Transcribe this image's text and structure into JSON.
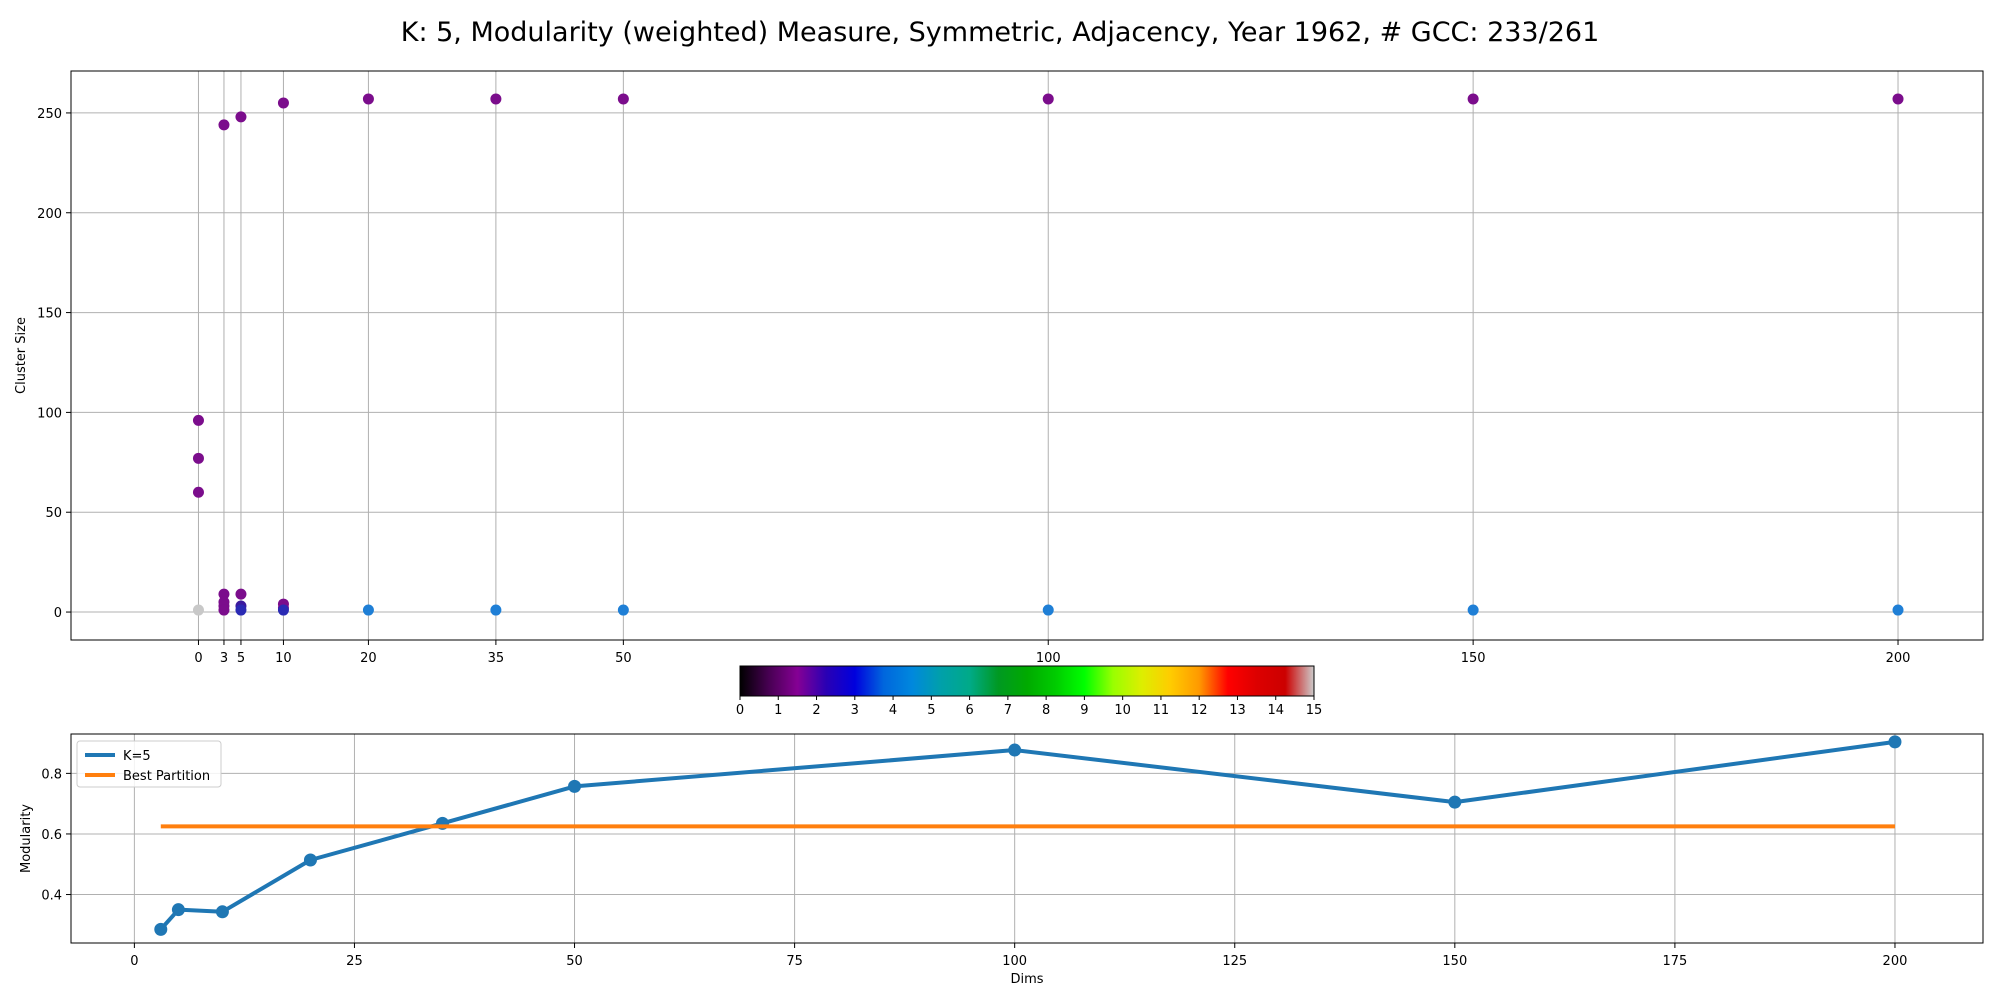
{
  "figure": {
    "title": "K: 5, Modularity (weighted) Measure, Symmetric, Adjacency, Year 1962, # GCC: 233/261"
  },
  "chart_data": [
    {
      "type": "scatter",
      "xlabel": "",
      "ylabel": "Cluster Size",
      "xticks": [
        0,
        3,
        5,
        10,
        20,
        35,
        50,
        100,
        150,
        200
      ],
      "yticks": [
        0,
        50,
        100,
        150,
        200,
        250
      ],
      "xlim": [
        -15,
        210
      ],
      "ylim": [
        -14,
        271
      ],
      "grid": true,
      "points": [
        {
          "x": 0,
          "y": 96,
          "color": "#7b0d8c"
        },
        {
          "x": 0,
          "y": 77,
          "color": "#7b0d8c"
        },
        {
          "x": 0,
          "y": 60,
          "color": "#7b0d8c"
        },
        {
          "x": 0,
          "y": 1,
          "color": "#c8c8c8"
        },
        {
          "x": 3,
          "y": 244,
          "color": "#7b0d8c"
        },
        {
          "x": 3,
          "y": 9,
          "color": "#7b0d8c"
        },
        {
          "x": 3,
          "y": 5,
          "color": "#7b0d8c"
        },
        {
          "x": 3,
          "y": 3,
          "color": "#7b0d8c"
        },
        {
          "x": 3,
          "y": 1,
          "color": "#7b0d8c"
        },
        {
          "x": 5,
          "y": 248,
          "color": "#7b0d8c"
        },
        {
          "x": 5,
          "y": 9,
          "color": "#7b0d8c"
        },
        {
          "x": 5,
          "y": 3,
          "color": "#3b1a9e"
        },
        {
          "x": 5,
          "y": 1,
          "color": "#2a2ab4"
        },
        {
          "x": 10,
          "y": 255,
          "color": "#7b0d8c"
        },
        {
          "x": 10,
          "y": 4,
          "color": "#7b0d8c"
        },
        {
          "x": 10,
          "y": 2,
          "color": "#7b0d8c"
        },
        {
          "x": 10,
          "y": 1,
          "color": "#2a2ab4"
        },
        {
          "x": 20,
          "y": 257,
          "color": "#7b0d8c"
        },
        {
          "x": 20,
          "y": 1,
          "color": "#1f7fd6"
        },
        {
          "x": 35,
          "y": 257,
          "color": "#7b0d8c"
        },
        {
          "x": 35,
          "y": 1,
          "color": "#1f7fd6"
        },
        {
          "x": 50,
          "y": 257,
          "color": "#7b0d8c"
        },
        {
          "x": 50,
          "y": 1,
          "color": "#1f7fd6"
        },
        {
          "x": 100,
          "y": 257,
          "color": "#7b0d8c"
        },
        {
          "x": 100,
          "y": 1,
          "color": "#1f7fd6"
        },
        {
          "x": 150,
          "y": 257,
          "color": "#7b0d8c"
        },
        {
          "x": 150,
          "y": 1,
          "color": "#1f7fd6"
        },
        {
          "x": 200,
          "y": 257,
          "color": "#7b0d8c"
        },
        {
          "x": 200,
          "y": 1,
          "color": "#1f7fd6"
        }
      ]
    },
    {
      "type": "colorbar",
      "colormap": "nipy_spectral",
      "range": [
        0,
        15
      ],
      "ticks": [
        0,
        1,
        2,
        3,
        4,
        5,
        6,
        7,
        8,
        9,
        10,
        11,
        12,
        13,
        14,
        15
      ],
      "stops": [
        {
          "v": 0.0,
          "c": "#000000"
        },
        {
          "v": 0.05,
          "c": "#470052"
        },
        {
          "v": 0.1,
          "c": "#850094"
        },
        {
          "v": 0.15,
          "c": "#2a00b4"
        },
        {
          "v": 0.2,
          "c": "#0000dd"
        },
        {
          "v": 0.25,
          "c": "#0066dd"
        },
        {
          "v": 0.3,
          "c": "#0088dd"
        },
        {
          "v": 0.35,
          "c": "#00a0aa"
        },
        {
          "v": 0.4,
          "c": "#00aa88"
        },
        {
          "v": 0.45,
          "c": "#009922"
        },
        {
          "v": 0.5,
          "c": "#00aa00"
        },
        {
          "v": 0.55,
          "c": "#00cc00"
        },
        {
          "v": 0.6,
          "c": "#00ff00"
        },
        {
          "v": 0.65,
          "c": "#99ff00"
        },
        {
          "v": 0.7,
          "c": "#ddee00"
        },
        {
          "v": 0.75,
          "c": "#ffcc00"
        },
        {
          "v": 0.8,
          "c": "#ff9900"
        },
        {
          "v": 0.85,
          "c": "#ff0000"
        },
        {
          "v": 0.9,
          "c": "#dd0000"
        },
        {
          "v": 0.95,
          "c": "#cc0000"
        },
        {
          "v": 1.0,
          "c": "#cccccc"
        }
      ]
    },
    {
      "type": "line",
      "xlabel": "Dims",
      "ylabel": "Modularity",
      "xticks": [
        0,
        25,
        50,
        75,
        100,
        125,
        150,
        175,
        200
      ],
      "yticks": [
        0.4,
        0.6,
        0.8
      ],
      "yticklabels": [
        "0.4",
        "0.6",
        "0.8"
      ],
      "xlim": [
        -7.2,
        210
      ],
      "ylim": [
        0.24,
        0.93
      ],
      "grid": true,
      "legend": "top-left",
      "series": [
        {
          "name": "K=5",
          "color": "#1f77b4",
          "marker": true,
          "x": [
            3,
            5,
            10,
            20,
            35,
            50,
            100,
            150,
            200
          ],
          "y": [
            0.285,
            0.35,
            0.343,
            0.514,
            0.635,
            0.757,
            0.877,
            0.705,
            0.904
          ]
        },
        {
          "name": "Best Partition",
          "color": "#ff7f0e",
          "marker": false,
          "x": [
            3,
            200
          ],
          "y": [
            0.625,
            0.625
          ]
        }
      ]
    }
  ]
}
